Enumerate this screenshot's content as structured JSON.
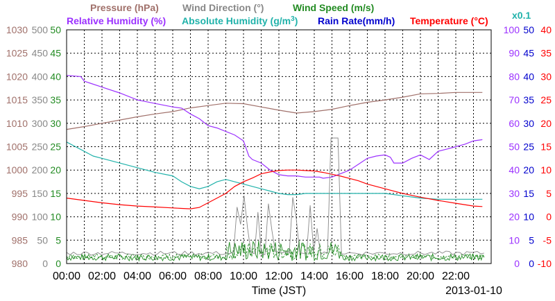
{
  "chart_data": {
    "type": "line",
    "date": "2013-01-10",
    "xlabel": "Time (JST)",
    "x_ticks": [
      "00:00",
      "02:00",
      "04:00",
      "06:00",
      "08:00",
      "10:00",
      "12:00",
      "14:00",
      "16:00",
      "18:00",
      "20:00",
      "22:00"
    ],
    "x_range_hours": [
      0,
      24
    ],
    "grid": true,
    "legend": {
      "top": [
        {
          "text": "Pressure (hPa)",
          "color": "#a0706a"
        },
        {
          "text": "Wind Direction (°)",
          "color": "#888888"
        },
        {
          "text": "Wind Speed (m/s)",
          "color": "#228b22"
        }
      ],
      "second": [
        {
          "text": "Relative Humidity (%)",
          "color": "#9b30ff"
        },
        {
          "text": "Absolute Humidity (g/m",
          "color": "#20b2aa",
          "sup": "3",
          "after": ")"
        },
        {
          "text": "Rain Rate(mm/h)",
          "color": "#0000cd"
        },
        {
          "text": "Temperature (°C)",
          "color": "#ff0000"
        }
      ],
      "multiplier": {
        "text": "x0.1",
        "color": "#20b2aa"
      }
    },
    "axes": {
      "pressure": {
        "label": "hPa",
        "color": "#a0706a",
        "range": [
          980,
          1030
        ],
        "ticks": [
          "1030",
          "1025",
          "1020",
          "1015",
          "1010",
          "1005",
          "1000",
          "995",
          "990",
          "985",
          "980"
        ]
      },
      "wind_direction": {
        "label": "deg",
        "color": "#888888",
        "range": [
          0,
          500
        ],
        "ticks": [
          "500",
          "450",
          "400",
          "350",
          "300",
          "250",
          "200",
          "150",
          "100",
          "50",
          "0"
        ]
      },
      "wind_speed": {
        "label": "m/s",
        "color": "#228b22",
        "range": [
          0,
          50
        ],
        "ticks": [
          "50",
          "45",
          "40",
          "35",
          "30",
          "25",
          "20",
          "15",
          "10",
          "5",
          "0"
        ]
      },
      "humidity": {
        "label": "%",
        "color": "#9b30ff",
        "range": [
          0,
          100
        ],
        "ticks": [
          "100",
          "90",
          "80",
          "70",
          "60",
          "50",
          "40",
          "30",
          "20",
          "10",
          "0"
        ]
      },
      "rain_rate": {
        "label": "mm/h",
        "color": "#0000cd",
        "range": [
          0,
          50
        ],
        "ticks": [
          "50",
          "45",
          "40",
          "35",
          "30",
          "25",
          "20",
          "15",
          "10",
          "5",
          "0"
        ]
      },
      "temperature": {
        "label": "°C",
        "color": "#ff0000",
        "range": [
          -10,
          40
        ],
        "ticks": [
          "40",
          "35",
          "30",
          "25",
          "20",
          "15",
          "10",
          "5",
          "0",
          "-5",
          "-10"
        ]
      }
    },
    "series": [
      {
        "name": "Pressure (hPa)",
        "axis": "pressure",
        "color": "#a0706a",
        "x": [
          0,
          1,
          2,
          3,
          4,
          5,
          6,
          7,
          8,
          9,
          10,
          11,
          12,
          13,
          14,
          15,
          16,
          17,
          18,
          19,
          20,
          21,
          22,
          23.5
        ],
        "y": [
          1008.7,
          1009.3,
          1010,
          1010.7,
          1011.4,
          1012,
          1012.5,
          1013.3,
          1013.8,
          1014.3,
          1014.2,
          1013.5,
          1012.8,
          1012.2,
          1012.5,
          1013,
          1013.8,
          1014.5,
          1015,
          1015.6,
          1016.3,
          1016.4,
          1016.6,
          1016.6
        ]
      },
      {
        "name": "Relative Humidity (%)",
        "axis": "humidity",
        "color": "#9b30ff",
        "x": [
          0,
          0.8,
          1,
          2,
          3,
          4,
          5,
          6,
          6.5,
          7,
          7.5,
          8,
          8.5,
          9,
          9.5,
          10,
          10.3,
          10.5,
          11,
          11.5,
          12,
          12.5,
          13,
          13.5,
          14,
          14.3,
          14.5,
          15,
          15.5,
          16,
          16.5,
          17,
          17.5,
          18,
          18.3,
          18.5,
          19,
          19.5,
          20,
          20.5,
          21,
          21.5,
          22,
          22.5,
          23,
          23.5
        ],
        "y": [
          80.5,
          80,
          78,
          75.5,
          73,
          70,
          68.5,
          67,
          66.5,
          64,
          62,
          59,
          58,
          56.5,
          55,
          52.5,
          46,
          44.5,
          43,
          40,
          38,
          37.5,
          37.5,
          37,
          37,
          37,
          36.5,
          37,
          38.5,
          40,
          42.5,
          45,
          46,
          46.5,
          45.5,
          43,
          43,
          45,
          46.5,
          44.5,
          48,
          49,
          50,
          51,
          52.5,
          53
        ]
      },
      {
        "name": "Absolute Humidity (g/m3)",
        "axis": "humidity",
        "color": "#20b2aa",
        "x": [
          0,
          0.5,
          1,
          1.5,
          2,
          3,
          4,
          5,
          6,
          6.5,
          7,
          7.5,
          8,
          8.5,
          9,
          10,
          11,
          11.5,
          12,
          12.5,
          13,
          13.5,
          14,
          14.5,
          15,
          16,
          17,
          18,
          19,
          20,
          21,
          22,
          23,
          23.5
        ],
        "y": [
          52,
          50,
          48,
          46,
          45,
          43,
          41,
          39,
          37.5,
          35,
          33,
          32,
          33,
          35,
          36,
          34,
          32,
          31,
          30,
          29.5,
          29.5,
          30,
          30,
          30,
          30,
          30,
          30,
          30,
          29,
          28,
          27.5,
          27.5,
          27.5,
          27.5
        ]
      },
      {
        "name": "Temperature (°C)",
        "axis": "temperature",
        "color": "#ff0000",
        "x": [
          0,
          1,
          2,
          3,
          4,
          5,
          6,
          6.5,
          7,
          7.5,
          8,
          8.5,
          9,
          9.5,
          10,
          10.5,
          11,
          11.5,
          12,
          12.5,
          13,
          13.5,
          14,
          14.5,
          15,
          15.5,
          16,
          16.5,
          17,
          18,
          19,
          20,
          21,
          22,
          23,
          23.5
        ],
        "y": [
          4,
          3.5,
          3,
          2.6,
          2.3,
          2.1,
          1.9,
          1.8,
          1.7,
          2,
          3,
          4,
          5,
          6.5,
          7.5,
          8.3,
          9.2,
          9.6,
          9.9,
          10,
          10,
          9.9,
          9.8,
          9.5,
          9.1,
          8.7,
          8.2,
          7.7,
          7,
          6,
          5,
          4.2,
          3.5,
          2.9,
          2.3,
          2.2
        ]
      }
    ]
  }
}
